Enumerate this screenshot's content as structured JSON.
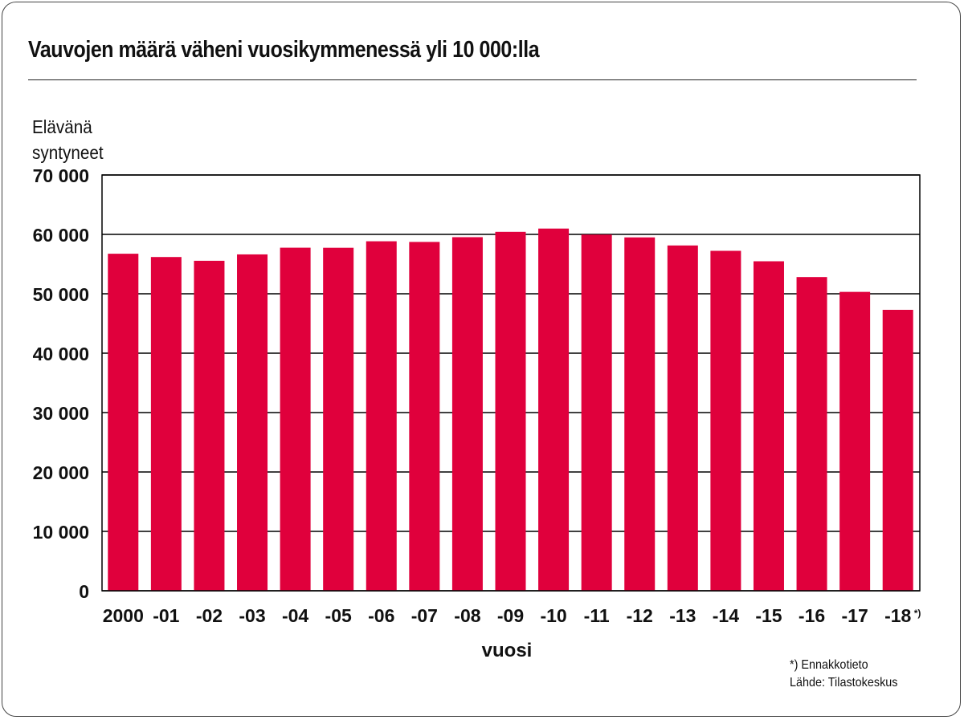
{
  "chart_data": {
    "type": "bar",
    "title": "Vauvojen määrä väheni vuosikymmenessä yli 10 000:lla",
    "ylabel_lines": [
      "Elävänä",
      "syntyneet"
    ],
    "xlabel": "vuosi",
    "categories": [
      "2000",
      "-01",
      "-02",
      "-03",
      "-04",
      "-05",
      "-06",
      "-07",
      "-08",
      "-09",
      "-10",
      "-11",
      "-12",
      "-13",
      "-14",
      "-15",
      "-16",
      "-17",
      "-18"
    ],
    "footnote_marker": "*)",
    "values": [
      56742,
      56189,
      55555,
      56630,
      57758,
      57745,
      58840,
      58729,
      59530,
      60430,
      60980,
      59961,
      59493,
      58134,
      57232,
      55472,
      52814,
      50321,
      47300
    ],
    "ylim": [
      0,
      70000
    ],
    "yticks": [
      0,
      10000,
      20000,
      30000,
      40000,
      50000,
      60000,
      70000
    ],
    "ytick_labels": [
      "0",
      "10 000",
      "20 000",
      "30 000",
      "40 000",
      "50 000",
      "60 000",
      "70 000"
    ],
    "grid": true,
    "bar_color": "#e0003c"
  },
  "notes": {
    "preliminary": "*) Ennakkotieto",
    "source": "Lähde: Tilastokeskus"
  }
}
